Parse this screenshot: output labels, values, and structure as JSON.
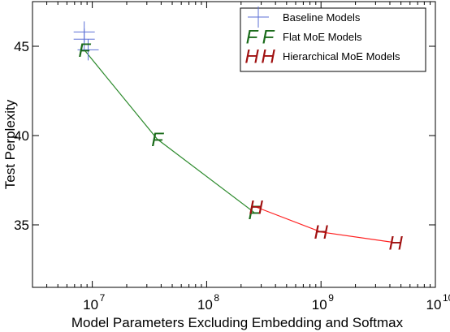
{
  "chart_data": {
    "type": "line",
    "title": "",
    "xlabel": "Model Parameters Excluding Embedding and Softmax",
    "ylabel": "Test Perplexity",
    "x_scale": "log",
    "xlim": [
      3000000,
      10000000000
    ],
    "ylim": [
      31.5,
      47.5
    ],
    "x_ticks": [
      {
        "value": 10000000,
        "base": "10",
        "exp": "7"
      },
      {
        "value": 100000000,
        "base": "10",
        "exp": "8"
      },
      {
        "value": 1000000000,
        "base": "10",
        "exp": "9"
      },
      {
        "value": 10000000000,
        "base": "10",
        "exp": "10"
      }
    ],
    "y_ticks": [
      {
        "value": 35,
        "label": "35"
      },
      {
        "value": 40,
        "label": "40"
      },
      {
        "value": 45,
        "label": "45"
      }
    ],
    "grid": false,
    "legend_position": "top-right",
    "series": [
      {
        "name": "Baseline Models",
        "marker": "+",
        "color": "#5b6fd6",
        "points": [
          {
            "x": 8500000,
            "y": 45.8
          },
          {
            "x": 8500000,
            "y": 45.4
          },
          {
            "x": 9200000,
            "y": 44.8
          }
        ]
      },
      {
        "name": "Flat MoE Models",
        "marker": "F",
        "color": "#1a6b1a",
        "line_color": "#2e8b2e",
        "points": [
          {
            "x": 8500000,
            "y": 44.8
          },
          {
            "x": 37000000,
            "y": 39.8
          },
          {
            "x": 260000000,
            "y": 35.7
          }
        ]
      },
      {
        "name": "Hierarchical MoE Models",
        "marker": "H",
        "color": "#a01010",
        "line_color": "#ff2020",
        "points": [
          {
            "x": 270000000,
            "y": 36.0
          },
          {
            "x": 1000000000,
            "y": 34.6
          },
          {
            "x": 4500000000,
            "y": 34.0
          }
        ]
      }
    ]
  }
}
